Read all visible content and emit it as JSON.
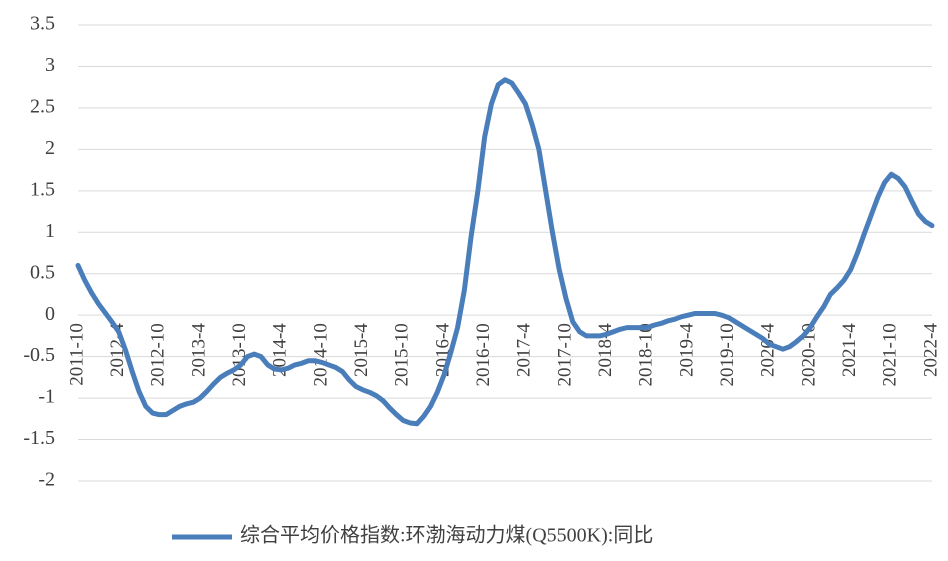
{
  "chart_data": {
    "type": "line",
    "categories": [
      "2011-10",
      null,
      null,
      null,
      null,
      null,
      "2012-4",
      null,
      null,
      null,
      null,
      null,
      "2012-10",
      null,
      null,
      null,
      null,
      null,
      "2013-4",
      null,
      null,
      null,
      null,
      null,
      "2013-10",
      null,
      null,
      null,
      null,
      null,
      "2014-4",
      null,
      null,
      null,
      null,
      null,
      "2014-10",
      null,
      null,
      null,
      null,
      null,
      "2015-4",
      null,
      null,
      null,
      null,
      null,
      "2015-10",
      null,
      null,
      null,
      null,
      null,
      "2016-4",
      null,
      null,
      null,
      null,
      null,
      "2016-10",
      null,
      null,
      null,
      null,
      null,
      "2017-4",
      null,
      null,
      null,
      null,
      null,
      "2017-10",
      null,
      null,
      null,
      null,
      null,
      "2018-4",
      null,
      null,
      null,
      null,
      null,
      "2018-10",
      null,
      null,
      null,
      null,
      null,
      "2019-4",
      null,
      null,
      null,
      null,
      null,
      "2019-10",
      null,
      null,
      null,
      null,
      null,
      "2020-4",
      null,
      null,
      null,
      null,
      null,
      "2020-10",
      null,
      null,
      null,
      null,
      null,
      "2021-4",
      null,
      null,
      null,
      null,
      null,
      "2021-10",
      null,
      null,
      null,
      null,
      null,
      "2022-4"
    ],
    "series": [
      {
        "name": "综合平均价格指数:环渤海动力煤(Q5500K):同比",
        "color": "#4a7ebb",
        "values": [
          0.6,
          0.42,
          0.27,
          0.14,
          0.03,
          -0.08,
          -0.2,
          -0.42,
          -0.68,
          -0.92,
          -1.1,
          -1.18,
          -1.2,
          -1.2,
          -1.15,
          -1.1,
          -1.07,
          -1.05,
          -1.0,
          -0.92,
          -0.83,
          -0.75,
          -0.7,
          -0.66,
          -0.6,
          -0.5,
          -0.47,
          -0.5,
          -0.6,
          -0.65,
          -0.66,
          -0.64,
          -0.6,
          -0.58,
          -0.55,
          -0.55,
          -0.57,
          -0.6,
          -0.63,
          -0.68,
          -0.78,
          -0.86,
          -0.9,
          -0.93,
          -0.97,
          -1.03,
          -1.12,
          -1.2,
          -1.27,
          -1.3,
          -1.31,
          -1.22,
          -1.1,
          -0.93,
          -0.72,
          -0.45,
          -0.15,
          0.3,
          0.95,
          1.5,
          2.15,
          2.55,
          2.78,
          2.84,
          2.8,
          2.68,
          2.55,
          2.3,
          2.0,
          1.5,
          1.0,
          0.55,
          0.2,
          -0.08,
          -0.2,
          -0.25,
          -0.25,
          -0.25,
          -0.23,
          -0.2,
          -0.17,
          -0.15,
          -0.15,
          -0.15,
          -0.15,
          -0.12,
          -0.1,
          -0.07,
          -0.05,
          -0.02,
          0.0,
          0.02,
          0.02,
          0.02,
          0.02,
          0.0,
          -0.03,
          -0.08,
          -0.13,
          -0.18,
          -0.23,
          -0.28,
          -0.35,
          -0.38,
          -0.41,
          -0.38,
          -0.32,
          -0.25,
          -0.15,
          -0.02,
          0.1,
          0.25,
          0.33,
          0.42,
          0.55,
          0.75,
          0.98,
          1.2,
          1.42,
          1.6,
          1.7,
          1.65,
          1.55,
          1.38,
          1.22,
          1.13,
          1.08
        ]
      }
    ],
    "ylim": [
      -2,
      3.5
    ],
    "yticks": [
      -2,
      -1.5,
      -1,
      -0.5,
      0,
      0.5,
      1,
      1.5,
      2,
      2.5,
      3,
      3.5
    ],
    "grid": true
  }
}
